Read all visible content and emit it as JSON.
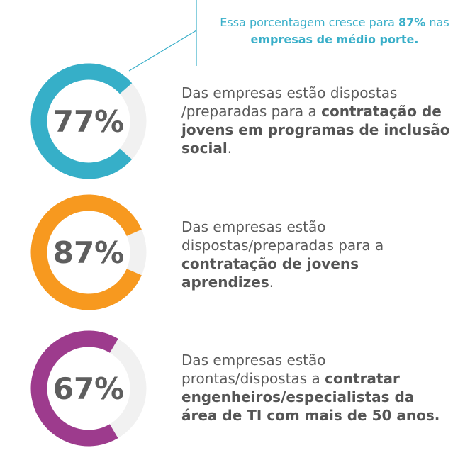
{
  "chart_data": {
    "type": "pie",
    "title": "",
    "series": [
      {
        "name": "inclusao-social",
        "value": 77,
        "max": 100,
        "label": "77%",
        "color": "#36afc8"
      },
      {
        "name": "jovens-aprendizes",
        "value": 87,
        "max": 100,
        "label": "87%",
        "color": "#f7991f"
      },
      {
        "name": "engenheiros-ti-50",
        "value": 67,
        "max": 100,
        "label": "67%",
        "color": "#9d3b8d"
      }
    ],
    "track_color": "#f1f1f1",
    "annotation": {
      "pre": "Essa porcentagem cresce para ",
      "highlight": "87%",
      "post": " nas",
      "bold_line": "empresas de médio porte.",
      "color": "#3aafc9"
    }
  },
  "items": [
    {
      "desc_pre": "Das empresas estão dispostas /preparadas para a ",
      "desc_bold": "contratação de jovens em programas de inclusão social",
      "desc_post": "."
    },
    {
      "desc_pre": "Das empresas estão dispostas/preparadas para a ",
      "desc_bold": "contratação de jovens aprendizes",
      "desc_post": "."
    },
    {
      "desc_pre": "Das empresas estão prontas/dispostas a ",
      "desc_bold": "contratar engenheiros/especialistas da área de TI com mais de 50 anos.",
      "desc_post": ""
    }
  ]
}
